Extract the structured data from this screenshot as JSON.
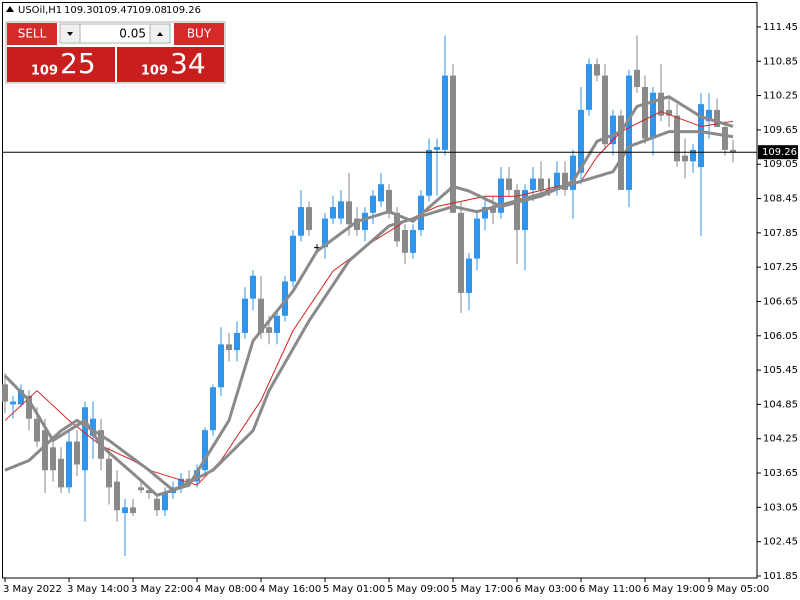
{
  "chart_data": {
    "type": "candlestick",
    "title": "USOil,H1",
    "title_ohlc": [
      "109.30",
      "109.47",
      "109.08",
      "109.26"
    ],
    "categories": [
      "3 May 2022",
      null,
      null,
      null,
      null,
      null,
      null,
      null,
      "3 May 14:00",
      null,
      null,
      null,
      null,
      null,
      null,
      null,
      "3 May 22:00",
      null,
      null,
      null,
      null,
      null,
      null,
      null,
      "4 May 08:00",
      null,
      null,
      null,
      null,
      null,
      null,
      null,
      "4 May 16:00",
      null,
      null,
      null,
      null,
      null,
      null,
      null,
      "5 May 01:00",
      null,
      null,
      null,
      null,
      null,
      null,
      null,
      "5 May 09:00",
      null,
      null,
      null,
      null,
      null,
      null,
      null,
      "5 May 17:00",
      null,
      null,
      null,
      null,
      null,
      null,
      null,
      "6 May 03:00",
      null,
      null,
      null,
      null,
      null,
      null,
      null,
      "6 May 11:00",
      null,
      null,
      null,
      null,
      null,
      null,
      null,
      "6 May 19:00",
      null,
      null,
      null,
      null,
      null,
      null,
      null,
      "9 May 05:00",
      null,
      null,
      null
    ],
    "open": [
      105.2,
      104.85,
      104.85,
      105.0,
      104.6,
      104.4,
      104.1,
      103.9,
      103.4,
      104.2,
      103.7,
      104.3,
      104.4,
      103.9,
      103.5,
      102.95,
      103.05,
      103.4,
      103.35,
      103.2,
      103.0,
      103.3,
      103.4,
      103.55,
      103.5,
      103.7,
      104.4,
      105.15,
      105.9,
      105.8,
      106.1,
      106.7,
      106.7,
      106.2,
      106.1,
      106.4,
      107.0,
      107.8,
      108.3,
      107.6,
      107.6,
      108.1,
      108.1,
      108.4,
      108.1,
      107.9,
      108.2,
      108.4,
      108.6,
      108.2,
      107.9,
      107.5,
      107.9,
      108.5,
      109.3,
      109.3,
      110.6,
      108.2,
      106.8,
      107.4,
      108.1,
      108.3,
      108.2,
      108.8,
      108.6,
      107.9,
      108.6,
      108.8,
      108.6,
      108.6,
      108.9,
      108.6,
      108.9,
      110.0,
      110.8,
      110.6,
      109.4,
      109.9,
      108.6,
      110.7,
      110.4,
      109.5,
      110.3,
      110.0,
      109.9,
      109.2,
      109.1,
      109.0,
      109.8,
      110.0,
      109.7,
      109.3
    ],
    "high": [
      105.4,
      105.0,
      105.2,
      105.1,
      104.8,
      104.6,
      104.3,
      104.1,
      104.4,
      104.4,
      104.9,
      104.9,
      104.6,
      104.1,
      103.7,
      103.2,
      103.2,
      103.5,
      103.4,
      103.3,
      103.4,
      103.5,
      103.65,
      103.7,
      103.8,
      104.45,
      105.2,
      106.2,
      106.1,
      106.3,
      106.9,
      107.2,
      107.1,
      106.4,
      106.5,
      107.1,
      107.9,
      108.6,
      108.4,
      107.65,
      108.2,
      108.5,
      108.6,
      108.9,
      108.3,
      108.3,
      108.6,
      108.9,
      108.7,
      108.3,
      108.0,
      108.0,
      108.6,
      109.5,
      109.5,
      111.3,
      110.8,
      108.4,
      107.5,
      108.2,
      108.5,
      108.5,
      109.0,
      109.0,
      108.7,
      108.7,
      109.0,
      109.1,
      108.8,
      109.1,
      109.1,
      109.3,
      110.4,
      110.9,
      110.9,
      110.8,
      110.0,
      110.0,
      110.7,
      111.3,
      110.6,
      110.4,
      110.8,
      110.2,
      110.1,
      109.5,
      109.4,
      110.3,
      110.3,
      110.2,
      109.8,
      109.47
    ],
    "low": [
      104.7,
      104.6,
      104.8,
      104.4,
      104.1,
      103.3,
      103.5,
      103.3,
      103.3,
      103.6,
      102.8,
      103.9,
      103.7,
      103.1,
      102.8,
      102.2,
      102.9,
      103.3,
      103.2,
      102.9,
      102.9,
      103.2,
      103.3,
      103.4,
      103.4,
      103.6,
      104.3,
      105.0,
      105.6,
      105.6,
      106.0,
      106.5,
      106.0,
      105.9,
      105.9,
      106.3,
      106.9,
      107.7,
      107.8,
      107.55,
      107.4,
      108.0,
      108.0,
      107.8,
      107.8,
      107.7,
      108.0,
      108.3,
      108.1,
      107.6,
      107.3,
      107.4,
      107.8,
      108.4,
      108.5,
      109.2,
      108.2,
      106.45,
      106.5,
      107.2,
      107.9,
      108.0,
      108.1,
      108.5,
      107.3,
      107.2,
      108.4,
      108.5,
      108.5,
      108.5,
      108.5,
      108.1,
      108.7,
      109.9,
      110.5,
      109.3,
      109.2,
      108.6,
      108.3,
      110.3,
      109.4,
      109.2,
      109.8,
      109.7,
      109.0,
      108.8,
      108.9,
      107.8,
      109.5,
      109.7,
      109.2,
      109.08
    ],
    "close": [
      104.9,
      104.9,
      105.1,
      104.6,
      104.2,
      103.7,
      103.7,
      103.4,
      104.2,
      103.8,
      104.8,
      104.6,
      103.9,
      103.4,
      103.0,
      103.05,
      102.95,
      103.35,
      103.3,
      103.0,
      103.3,
      103.4,
      103.55,
      103.5,
      103.7,
      104.4,
      105.15,
      105.9,
      105.8,
      106.1,
      106.7,
      107.1,
      106.1,
      106.1,
      106.4,
      107.0,
      107.8,
      108.3,
      107.9,
      107.6,
      108.1,
      108.3,
      108.4,
      108.0,
      107.9,
      108.2,
      108.5,
      108.7,
      108.2,
      107.7,
      107.5,
      107.9,
      108.5,
      109.3,
      109.35,
      110.6,
      108.2,
      106.8,
      107.4,
      108.1,
      108.3,
      108.2,
      108.8,
      108.6,
      107.9,
      108.6,
      108.8,
      108.6,
      108.6,
      108.9,
      108.6,
      109.2,
      110.0,
      110.8,
      110.6,
      109.4,
      109.9,
      108.6,
      110.6,
      110.4,
      109.5,
      110.3,
      109.9,
      109.9,
      109.1,
      109.1,
      109.3,
      110.1,
      110.0,
      109.7,
      109.3,
      109.26
    ],
    "up_color": "#2f95ec",
    "down_color": "#8a8a8a",
    "doji_color": "#000000",
    "lines": [
      {
        "color": "#d42020",
        "width": 1,
        "x": [
          0,
          4,
          8,
          12,
          16,
          18,
          24,
          27,
          32,
          36,
          41,
          46,
          50,
          54,
          60,
          64,
          69,
          72,
          74,
          77,
          82,
          87,
          91
        ],
        "values": [
          104.57,
          105.09,
          104.57,
          104.13,
          103.87,
          103.7,
          103.44,
          103.87,
          104.92,
          106.14,
          107.18,
          107.7,
          108.05,
          108.31,
          108.49,
          108.49,
          108.66,
          108.75,
          109.18,
          109.62,
          109.97,
          109.71,
          109.8
        ]
      },
      {
        "color": "#8a8a8a",
        "width": 3,
        "x": [
          0,
          3,
          6,
          10,
          12,
          17,
          19,
          23,
          28,
          31,
          33,
          36,
          39,
          44,
          48,
          51,
          56,
          58,
          62,
          67,
          71,
          74,
          77,
          79,
          83,
          87,
          91
        ],
        "values": [
          105.35,
          104.92,
          104.22,
          104.57,
          104.13,
          103.52,
          103.26,
          103.44,
          104.57,
          105.96,
          106.31,
          106.83,
          107.53,
          108.05,
          108.22,
          108.05,
          108.66,
          108.58,
          108.31,
          108.49,
          108.75,
          109.45,
          109.62,
          110.06,
          110.23,
          109.88,
          109.71
        ]
      },
      {
        "color": "#8a8a8a",
        "width": 3,
        "x": [
          0,
          3,
          7,
          9,
          13,
          18,
          21,
          26,
          31,
          33,
          38,
          43,
          48,
          52,
          56,
          59,
          66,
          72,
          76,
          78,
          83,
          87,
          91
        ],
        "values": [
          103.7,
          103.87,
          104.39,
          104.57,
          104.22,
          103.7,
          103.35,
          103.7,
          104.39,
          105.09,
          106.31,
          107.36,
          107.97,
          108.14,
          108.31,
          108.22,
          108.49,
          108.75,
          108.92,
          109.36,
          109.62,
          109.62,
          109.53
        ]
      }
    ],
    "current_price": 109.26,
    "ylim": [
      101.815,
      111.886
    ],
    "yticks": [
      111.45,
      110.85,
      110.25,
      109.65,
      109.05,
      108.45,
      107.85,
      107.25,
      106.65,
      106.05,
      105.45,
      104.85,
      104.25,
      103.65,
      103.05,
      102.45,
      101.85
    ],
    "grid": false
  },
  "trade_panel": {
    "sell": "SELL",
    "buy": "BUY",
    "volume": "0.05",
    "bid": {
      "prefix": "109",
      "digits": "25"
    },
    "ask": {
      "prefix": "109",
      "digits": "34"
    }
  }
}
